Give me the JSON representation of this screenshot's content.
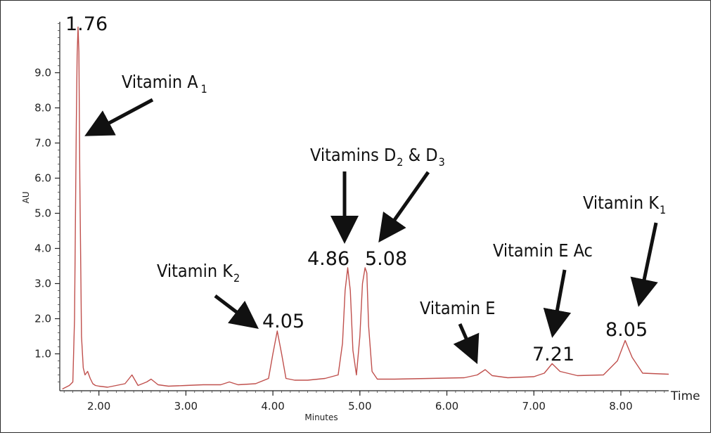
{
  "chart_data": {
    "type": "line",
    "xlabel": "Minutes",
    "ylabel": "AU",
    "x_end_label": "Time",
    "xlim": [
      1.55,
      8.55
    ],
    "ylim": [
      -0.05,
      10.45
    ],
    "x_ticks": [
      {
        "value": 2.0,
        "label": "2.00"
      },
      {
        "value": 3.0,
        "label": "3.00"
      },
      {
        "value": 4.0,
        "label": "4.00"
      },
      {
        "value": 5.0,
        "label": "5.00"
      },
      {
        "value": 6.0,
        "label": "6.00"
      },
      {
        "value": 7.0,
        "label": "7.00"
      },
      {
        "value": 8.0,
        "label": "8.00"
      }
    ],
    "y_ticks": [
      {
        "value": 1.0,
        "label": "1.0"
      },
      {
        "value": 2.0,
        "label": "2.0"
      },
      {
        "value": 3.0,
        "label": "3.0"
      },
      {
        "value": 4.0,
        "label": "4.0"
      },
      {
        "value": 5.0,
        "label": "5.0"
      },
      {
        "value": 6.0,
        "label": "6.0"
      },
      {
        "value": 7.0,
        "label": "7.0"
      },
      {
        "value": 8.0,
        "label": "8.0"
      },
      {
        "value": 9.0,
        "label": "9.0"
      }
    ],
    "line_color": "#c0504d",
    "series": [
      {
        "x": [
          1.58,
          1.62,
          1.66,
          1.7,
          1.72,
          1.74,
          1.75,
          1.76,
          1.77,
          1.78,
          1.8,
          1.82,
          1.84,
          1.87,
          1.9,
          1.93,
          1.96,
          2.0,
          2.1,
          2.2,
          2.3,
          2.38,
          2.45,
          2.55,
          2.6,
          2.68,
          2.8,
          3.0,
          3.2,
          3.4,
          3.5,
          3.6,
          3.8,
          3.95,
          4.0,
          4.05,
          4.1,
          4.15,
          4.25,
          4.4,
          4.6,
          4.75,
          4.8,
          4.83,
          4.86,
          4.89,
          4.92,
          4.96,
          5.0,
          5.03,
          5.06,
          5.08,
          5.1,
          5.14,
          5.2,
          5.4,
          5.8,
          6.2,
          6.35,
          6.44,
          6.52,
          6.7,
          7.0,
          7.12,
          7.21,
          7.3,
          7.5,
          7.8,
          7.96,
          8.05,
          8.13,
          8.25,
          8.55
        ],
        "y": [
          0.0,
          0.05,
          0.1,
          0.2,
          2.0,
          7.5,
          9.5,
          10.3,
          9.6,
          6.0,
          1.5,
          0.6,
          0.4,
          0.5,
          0.3,
          0.15,
          0.1,
          0.08,
          0.05,
          0.1,
          0.15,
          0.4,
          0.1,
          0.2,
          0.28,
          0.12,
          0.08,
          0.1,
          0.12,
          0.12,
          0.2,
          0.12,
          0.15,
          0.3,
          1.0,
          1.65,
          1.0,
          0.3,
          0.25,
          0.25,
          0.3,
          0.4,
          1.3,
          2.8,
          3.45,
          2.8,
          1.1,
          0.4,
          1.5,
          3.0,
          3.45,
          3.3,
          1.8,
          0.5,
          0.28,
          0.28,
          0.3,
          0.32,
          0.4,
          0.55,
          0.38,
          0.32,
          0.35,
          0.45,
          0.72,
          0.5,
          0.38,
          0.4,
          0.8,
          1.38,
          0.9,
          0.45,
          0.42
        ]
      }
    ],
    "annotations": {
      "peak_labels": [
        {
          "text": "1.76",
          "x": 1.76,
          "y": 10.3
        },
        {
          "text": "4.05",
          "x": 4.05,
          "y": 1.65
        },
        {
          "text": "4.86",
          "x": 4.86,
          "y": 3.45
        },
        {
          "text": "5.08",
          "x": 5.08,
          "y": 3.45
        },
        {
          "text": "7.21",
          "x": 7.21,
          "y": 0.72
        },
        {
          "text": "8.05",
          "x": 8.05,
          "y": 1.38
        }
      ],
      "compound_labels": [
        {
          "main": "Vitamin A",
          "sub": "1"
        },
        {
          "main": "Vitamin K",
          "sub": "2"
        },
        {
          "main": "Vitamins D",
          "sub": "2",
          "tail": " & D",
          "sub2": "3"
        },
        {
          "main": "Vitamin E",
          "sub": ""
        },
        {
          "main": "Vitamin E Ac",
          "sub": ""
        },
        {
          "main": "Vitamin K",
          "sub": "1"
        }
      ]
    }
  }
}
